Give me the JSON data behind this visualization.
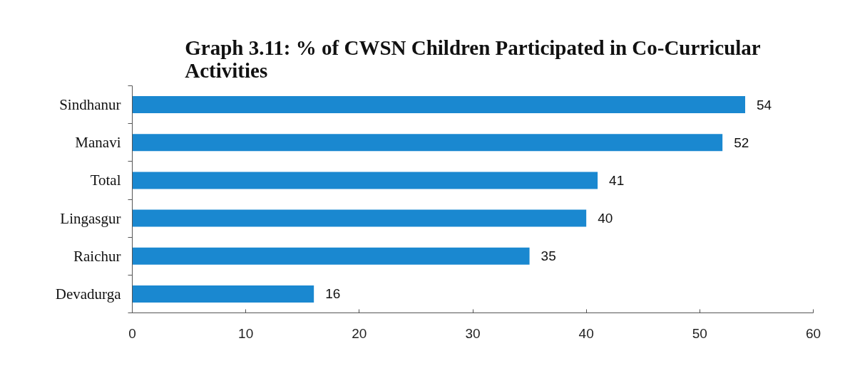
{
  "chart_data": {
    "type": "bar",
    "orientation": "horizontal",
    "title": "Graph 3.11: % of CWSN Children Participated in Co-Curricular Activities",
    "categories": [
      "Sindhanur",
      "Manavi",
      "Total",
      "Lingasgur",
      "Raichur",
      "Devadurga"
    ],
    "values": [
      54,
      52,
      41,
      40,
      35,
      16
    ],
    "color": "#1a88d0",
    "xlim": [
      0,
      60
    ],
    "xticks": [
      0,
      10,
      20,
      30,
      40,
      50,
      60
    ],
    "data_labels": true
  }
}
